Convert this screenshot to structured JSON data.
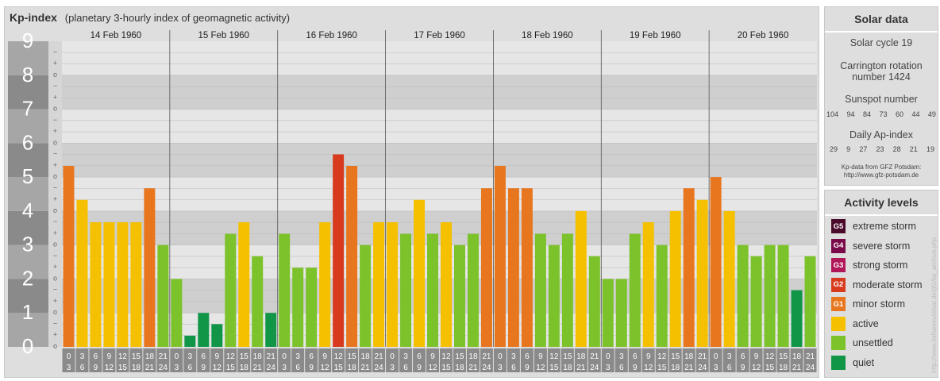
{
  "title": "Kp-index",
  "subtitle": "(planetary 3-hourly index of geomagnetic activity)",
  "chart_data": {
    "type": "bar",
    "days": [
      "14 Feb 1960",
      "15 Feb 1960",
      "16 Feb 1960",
      "17 Feb 1960",
      "18 Feb 1960",
      "19 Feb 1960",
      "20 Feb 1960"
    ],
    "y_tick_labels": [
      "0",
      "1",
      "2",
      "3",
      "4",
      "5",
      "6",
      "7",
      "8",
      "9"
    ],
    "sub_tick_labels": [
      "o",
      "+",
      "−"
    ],
    "hour_start_labels": [
      "0",
      "3",
      "6",
      "9",
      "12",
      "15",
      "18",
      "21"
    ],
    "hour_end_labels": [
      "3",
      "6",
      "9",
      "12",
      "15",
      "18",
      "21",
      "24"
    ],
    "ylim": [
      0,
      9
    ],
    "values": [
      5.33,
      4.33,
      3.67,
      3.67,
      3.67,
      3.67,
      4.67,
      3.0,
      2.0,
      0.33,
      1.0,
      0.67,
      3.33,
      3.67,
      2.67,
      1.0,
      3.33,
      2.33,
      2.33,
      3.67,
      5.67,
      5.33,
      3.0,
      3.67,
      3.67,
      3.33,
      4.33,
      3.33,
      3.67,
      3.0,
      3.33,
      4.67,
      5.33,
      4.67,
      4.67,
      3.33,
      3.0,
      3.33,
      4.0,
      2.67,
      2.0,
      2.0,
      3.33,
      3.67,
      3.0,
      4.0,
      4.67,
      4.33,
      5.0,
      4.0,
      3.0,
      2.67,
      3.0,
      3.0,
      1.67,
      2.67
    ]
  },
  "solar": {
    "heading": "Solar data",
    "cycle": "Solar cycle 19",
    "carrington_line1": "Carrington rotation",
    "carrington_line2": "number 1424",
    "sunspot_heading": "Sunspot number",
    "sunspots": [
      "104",
      "94",
      "84",
      "73",
      "60",
      "44",
      "49"
    ],
    "ap_heading": "Daily Ap-index",
    "ap": [
      "29",
      "9",
      "27",
      "23",
      "28",
      "21",
      "19"
    ],
    "source_line1": "Kp-data from GFZ Potsdam:",
    "source_line2": "http://www.gfz-potsdam.de"
  },
  "activity": {
    "heading": "Activity levels",
    "levels": [
      {
        "code": "G5",
        "label": "extreme storm",
        "color": "#4a0a2a"
      },
      {
        "code": "G4",
        "label": "severe storm",
        "color": "#7a0a4a"
      },
      {
        "code": "G3",
        "label": "strong storm",
        "color": "#b0185a"
      },
      {
        "code": "G2",
        "label": "moderate storm",
        "color": "#d83a1e"
      },
      {
        "code": "G1",
        "label": "minor storm",
        "color": "#e8761e"
      },
      {
        "code": "",
        "label": "active",
        "color": "#f5c000"
      },
      {
        "code": "",
        "label": "unsettled",
        "color": "#7cc22a"
      },
      {
        "code": "",
        "label": "quiet",
        "color": "#119648"
      }
    ]
  },
  "source_url": "http://www.tiefseeeutelsat.de/gfz/kp_archive.php",
  "colors": {
    "quiet": "#119648",
    "unsettled": "#7cc22a",
    "active": "#f5c000",
    "minor": "#e8761e",
    "moderate": "#d83a1e",
    "strong": "#b0185a",
    "plot_light": "#e6e6e6",
    "plot_dark": "#cfcfcf",
    "axis_dark": "#8a8a8a",
    "axis_light": "#a6a6a6",
    "hour_box": "#8a8a8a"
  }
}
